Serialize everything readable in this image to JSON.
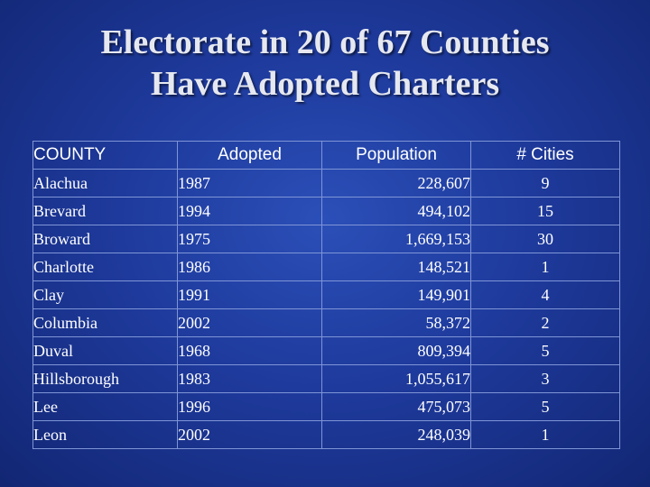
{
  "title": {
    "line1": "Electorate in 20 of 67 Counties",
    "line2": "Have Adopted Charters"
  },
  "table": {
    "headers": [
      "COUNTY",
      "Adopted",
      "Population",
      "# Cities"
    ],
    "rows": [
      [
        "Alachua",
        "1987",
        "228,607",
        "9"
      ],
      [
        "Brevard",
        "1994",
        "494,102",
        "15"
      ],
      [
        "Broward",
        "1975",
        "1,669,153",
        "30"
      ],
      [
        "Charlotte",
        "1986",
        "148,521",
        "1"
      ],
      [
        "Clay",
        "1991",
        "149,901",
        "4"
      ],
      [
        "Columbia",
        "2002",
        "58,372",
        "2"
      ],
      [
        "Duval",
        "1968",
        "809,394",
        "5"
      ],
      [
        "Hillsborough",
        "1983",
        "1,055,617",
        "3"
      ],
      [
        "Lee",
        "1996",
        "475,073",
        "5"
      ],
      [
        "Leon",
        "2002",
        "248,039",
        "1"
      ]
    ]
  }
}
